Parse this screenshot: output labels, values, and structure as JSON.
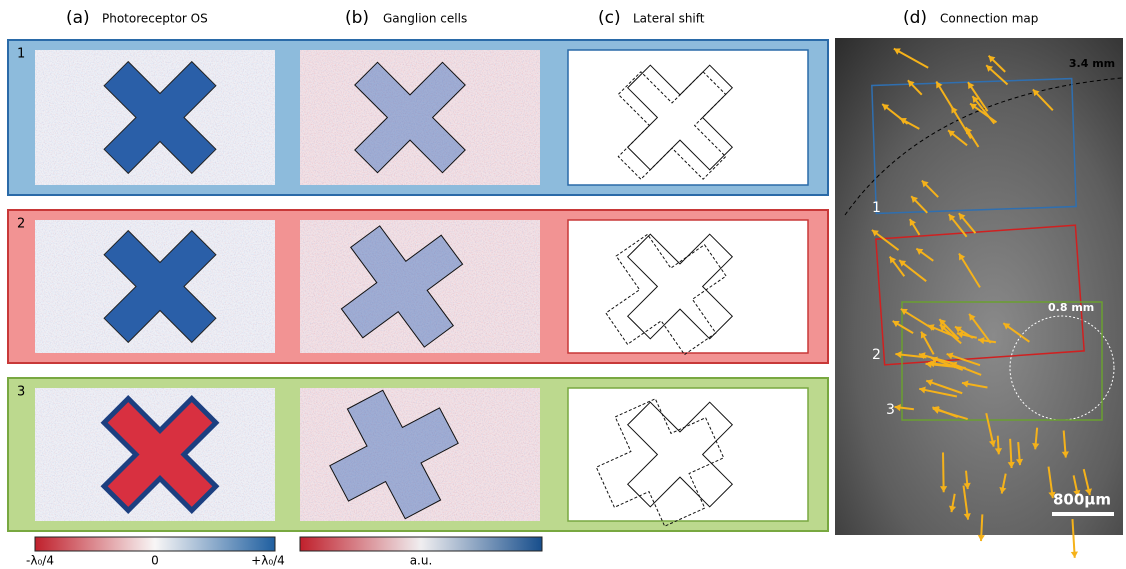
{
  "panels": [
    {
      "label": "(a)",
      "title": "Photoreceptor OS"
    },
    {
      "label": "(b)",
      "title": "Ganglion cells"
    },
    {
      "label": "(c)",
      "title": "Lateral shift"
    },
    {
      "label": "(d)",
      "title": "Connection map"
    }
  ],
  "rows": [
    "1",
    "2",
    "3"
  ],
  "colorbars": [
    {
      "labels": [
        "-λ₀/4",
        "0",
        "+λ₀/4"
      ]
    },
    {
      "labels": [
        "a.u."
      ]
    }
  ],
  "map": {
    "annotations": [
      "3.4 mm",
      "0.8 mm"
    ],
    "region_labels": [
      "1",
      "2",
      "3"
    ],
    "scale_bar": "800μm"
  }
}
